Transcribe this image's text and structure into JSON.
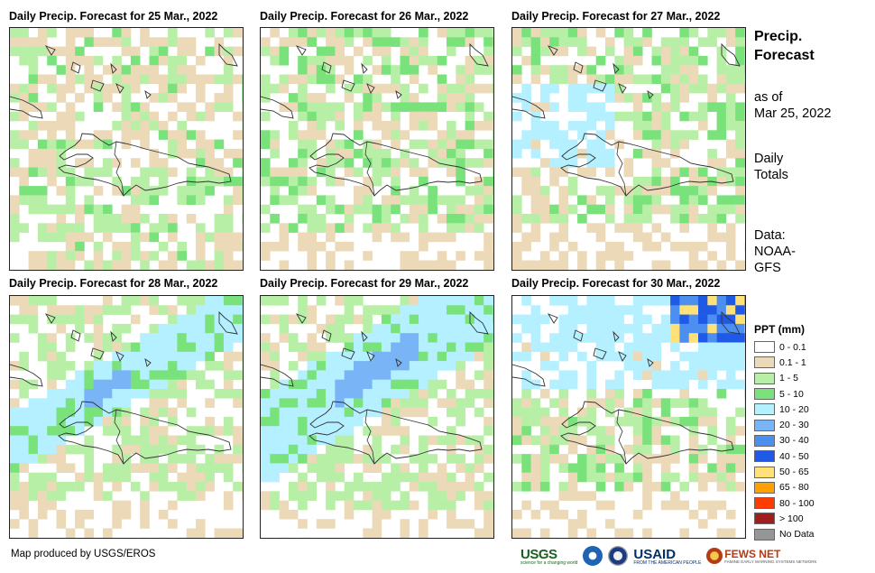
{
  "panels": [
    {
      "title": "Daily Precip. Forecast for 25 Mar., 2022",
      "profile": "low"
    },
    {
      "title": "Daily Precip. Forecast for 26 Mar., 2022",
      "profile": "low2"
    },
    {
      "title": "Daily Precip. Forecast for 27 Mar., 2022",
      "profile": "northmoist"
    },
    {
      "title": "Daily Precip. Forecast for 28 Mar., 2022",
      "profile": "band"
    },
    {
      "title": "Daily Precip. Forecast for 29 Mar., 2022",
      "profile": "bandwide"
    },
    {
      "title": "Daily Precip. Forecast for 30 Mar., 2022",
      "profile": "northheavy"
    }
  ],
  "side": {
    "title_line1": "Precip.",
    "title_line2": "Forecast",
    "asof_line1": "as of",
    "asof_line2": "Mar 25, 2022",
    "daily_line1": "Daily",
    "daily_line2": "Totals",
    "data_line1": "Data:",
    "data_line2": "NOAA-",
    "data_line3": "GFS"
  },
  "legend": {
    "title": "PPT (mm)",
    "items": [
      {
        "label": "0 - 0.1",
        "color": "#ffffff"
      },
      {
        "label": "0.1 - 1",
        "color": "#ecd9b8"
      },
      {
        "label": "1 - 5",
        "color": "#b8efa6"
      },
      {
        "label": "5 - 10",
        "color": "#79e27b"
      },
      {
        "label": "10 - 20",
        "color": "#b4f0ff"
      },
      {
        "label": "20 - 30",
        "color": "#78b4f6"
      },
      {
        "label": "30 - 40",
        "color": "#4c8ff0"
      },
      {
        "label": "40 - 50",
        "color": "#1e5ae6"
      },
      {
        "label": "50 - 65",
        "color": "#ffe178"
      },
      {
        "label": "65 - 80",
        "color": "#ffa000"
      },
      {
        "label": "80 - 100",
        "color": "#ff3c00"
      },
      {
        "label": "> 100",
        "color": "#a01e1e"
      },
      {
        "label": "No Data",
        "color": "#969696"
      }
    ]
  },
  "credit": "Map produced by USGS/EROS",
  "logos": {
    "usgs": "USGS",
    "usgs_tag": "science for a changing world",
    "usaid": "USAID",
    "usaid_tag": "FROM THE AMERICAN PEOPLE",
    "fews": "FEWS NET",
    "fews_tag": "FAMINE EARLY WARNING SYSTEMS NETWORK"
  }
}
